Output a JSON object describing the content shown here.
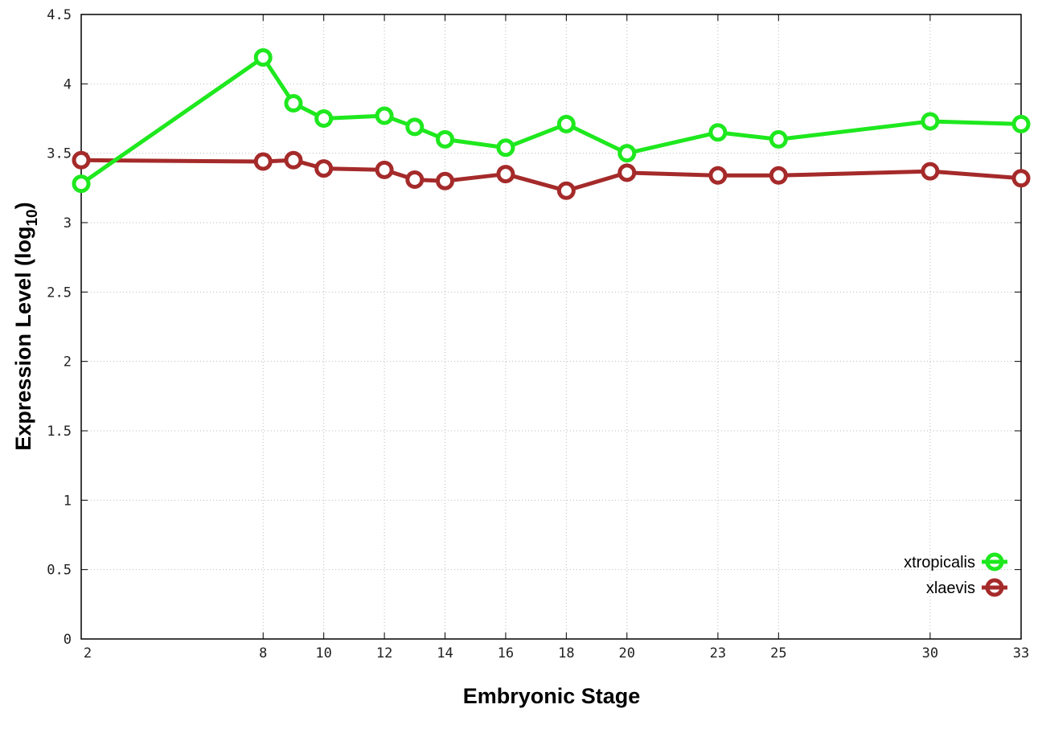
{
  "chart_data": {
    "type": "line",
    "xlabel": "Embryonic Stage",
    "ylabel": "Expression Level (log",
    "ylabel_sub": "10",
    "ylabel_close": ")",
    "x": [
      2,
      8,
      9,
      10,
      12,
      13,
      14,
      16,
      18,
      20,
      23,
      25,
      30,
      33
    ],
    "x_tick_labels": [
      "2",
      "8",
      "10",
      "12",
      "14",
      "16",
      "18",
      "20",
      "23",
      "25",
      "30",
      "33"
    ],
    "x_tick_values": [
      2,
      8,
      10,
      12,
      14,
      16,
      18,
      20,
      23,
      25,
      30,
      33
    ],
    "y_tick_labels": [
      "0",
      "0.5",
      "1",
      "1.5",
      "2",
      "2.5",
      "3",
      "3.5",
      "4",
      "4.5"
    ],
    "xlim": [
      2,
      33
    ],
    "ylim": [
      0,
      4.5
    ],
    "grid": true,
    "legend_position": "bottom-right",
    "series": [
      {
        "name": "xtropicalis",
        "color": "#1ee81e",
        "values": [
          3.28,
          4.19,
          3.86,
          3.75,
          3.77,
          3.69,
          3.6,
          3.54,
          3.71,
          3.5,
          3.65,
          3.6,
          3.73,
          3.71
        ]
      },
      {
        "name": "xlaevis",
        "color": "#a52a2a",
        "values": [
          3.45,
          3.44,
          3.45,
          3.39,
          3.38,
          3.31,
          3.3,
          3.35,
          3.23,
          3.36,
          3.34,
          3.34,
          3.37,
          3.32
        ]
      }
    ]
  }
}
